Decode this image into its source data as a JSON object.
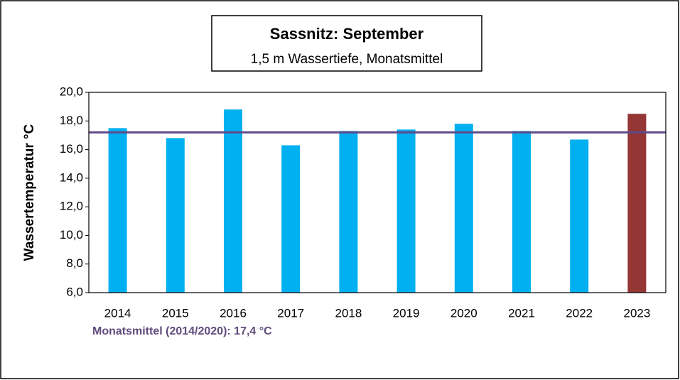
{
  "chart_data": {
    "type": "bar",
    "title": "Sassnitz: September",
    "subtitle": "1,5 m Wassertiefe, Monatsmittel",
    "y_label": "Wassertemperatur °C",
    "annotation": "Monatsmittel (2014/2020): 17,4 °C",
    "categories": [
      "2014",
      "2015",
      "2016",
      "2017",
      "2018",
      "2019",
      "2020",
      "2021",
      "2022",
      "2023"
    ],
    "values": [
      17.5,
      16.8,
      18.8,
      16.3,
      17.3,
      17.4,
      17.8,
      17.3,
      16.7,
      18.5
    ],
    "colors": [
      "#00b0f0",
      "#00b0f0",
      "#00b0f0",
      "#00b0f0",
      "#00b0f0",
      "#00b0f0",
      "#00b0f0",
      "#00b0f0",
      "#00b0f0",
      "#943634"
    ],
    "reference_line": {
      "value": 17.2,
      "color": "#5f4b8b"
    },
    "ylim": [
      6,
      20
    ],
    "yticks": [
      {
        "value": 6,
        "label": "6,0"
      },
      {
        "value": 8,
        "label": "8,0"
      },
      {
        "value": 10,
        "label": "10,0"
      },
      {
        "value": 12,
        "label": "12,0"
      },
      {
        "value": 14,
        "label": "14,0"
      },
      {
        "value": 16,
        "label": "16,0"
      },
      {
        "value": 18,
        "label": "18,0"
      },
      {
        "value": 20,
        "label": "20,0"
      }
    ],
    "grid": false
  }
}
